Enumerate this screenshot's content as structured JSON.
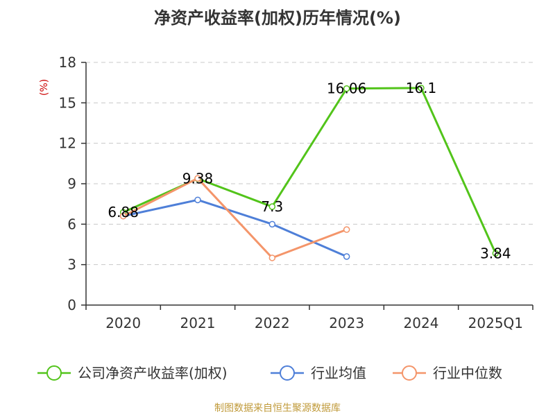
{
  "chart_data": {
    "type": "line",
    "title": "净资产收益率(加权)历年情况(%)",
    "ylabel": "(%)",
    "xlabel": "",
    "categories": [
      "2020",
      "2021",
      "2022",
      "2023",
      "2024",
      "2025Q1"
    ],
    "ylim": [
      0,
      18
    ],
    "yticks": [
      0,
      3,
      6,
      9,
      12,
      15,
      18
    ],
    "grid": true,
    "legend_position": "bottom",
    "series": [
      {
        "name": "公司净资产收益率(加权)",
        "color": "#52c41a",
        "values": [
          6.88,
          9.38,
          7.3,
          16.06,
          16.1,
          3.84
        ],
        "labels": [
          "6.88",
          "9.38",
          "7.3",
          "16.06",
          "16.1",
          "3.84"
        ]
      },
      {
        "name": "行业均值",
        "color": "#4e7fd8",
        "values": [
          6.6,
          7.8,
          6.0,
          3.6,
          null,
          null
        ]
      },
      {
        "name": "行业中位数",
        "color": "#f4956a",
        "values": [
          6.6,
          9.4,
          3.5,
          5.6,
          null,
          null
        ]
      }
    ]
  },
  "footer": {
    "source": "制图数据来自恒生聚源数据库"
  }
}
